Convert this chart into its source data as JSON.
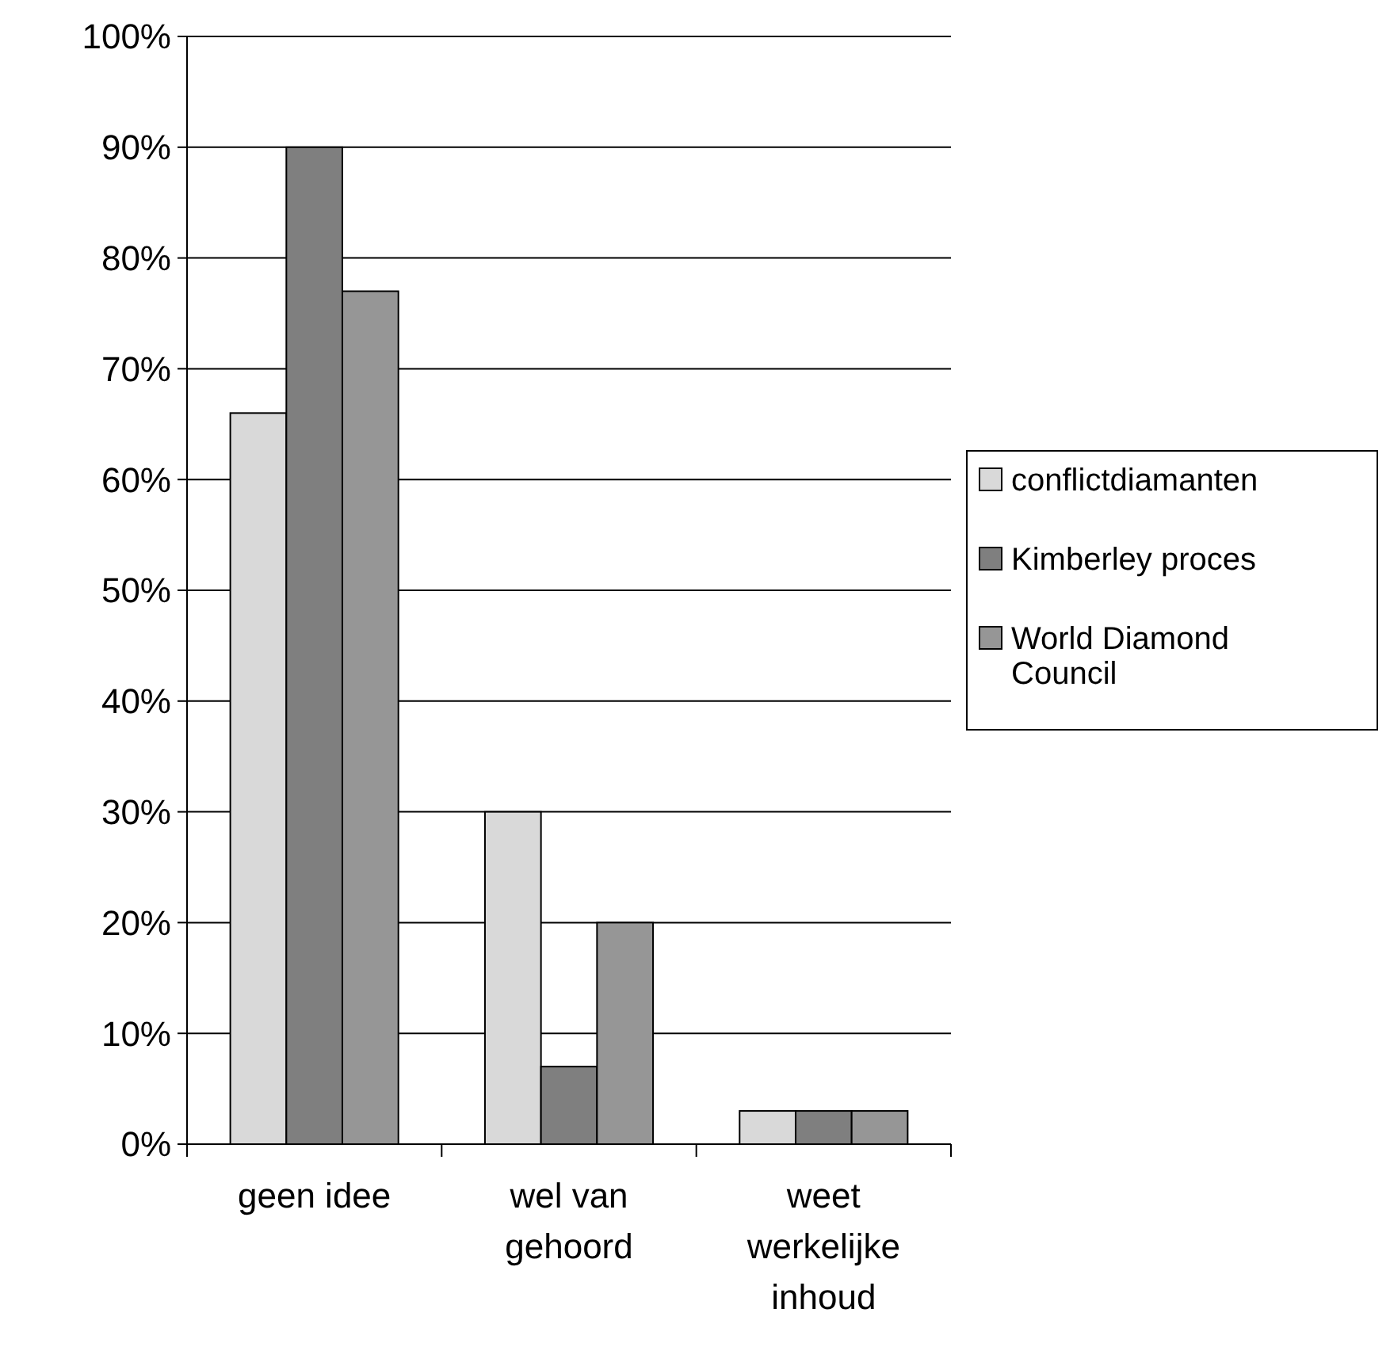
{
  "chart_data": {
    "type": "bar",
    "categories": [
      "geen idee",
      "wel van gehoord",
      "weet werkelijke inhoud"
    ],
    "series": [
      {
        "name": "conflictdiamanten",
        "color": "#d9d9d9",
        "values": [
          66,
          30,
          3
        ]
      },
      {
        "name": "Kimberley proces",
        "color": "#7f7f7f",
        "values": [
          90,
          7,
          3
        ]
      },
      {
        "name": "World Diamond Council",
        "color": "#969696",
        "values": [
          77,
          20,
          3
        ]
      }
    ],
    "ylim": [
      0,
      100
    ],
    "yticks": [
      {
        "value": 0,
        "label": "0%"
      },
      {
        "value": 10,
        "label": "10%"
      },
      {
        "value": 20,
        "label": "20%"
      },
      {
        "value": 30,
        "label": "30%"
      },
      {
        "value": 40,
        "label": "40%"
      },
      {
        "value": 50,
        "label": "50%"
      },
      {
        "value": 60,
        "label": "60%"
      },
      {
        "value": 70,
        "label": "70%"
      },
      {
        "value": 80,
        "label": "80%"
      },
      {
        "value": 90,
        "label": "90%"
      },
      {
        "value": 100,
        "label": "100%"
      }
    ],
    "grid": "y",
    "legend": "right"
  }
}
